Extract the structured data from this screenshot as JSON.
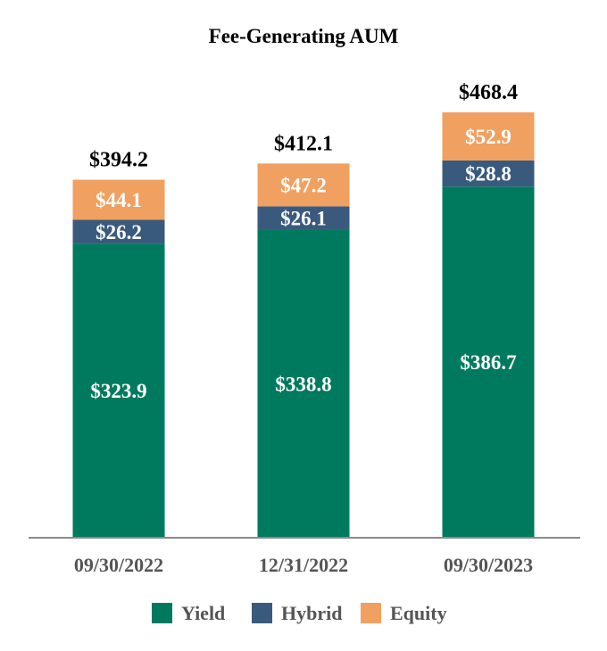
{
  "chart_data": {
    "type": "bar",
    "stacked": true,
    "title": "Fee-Generating AUM",
    "categories": [
      "09/30/2022",
      "12/31/2022",
      "09/30/2023"
    ],
    "series": [
      {
        "name": "Yield",
        "values": [
          323.9,
          338.8,
          386.7
        ],
        "labels": [
          "$323.9",
          "$338.8",
          "$386.7"
        ],
        "color": "#007a5e"
      },
      {
        "name": "Hybrid",
        "values": [
          26.2,
          26.1,
          28.8
        ],
        "labels": [
          "$26.2",
          "$26.1",
          "$28.8"
        ],
        "color": "#3a5a7d"
      },
      {
        "name": "Equity",
        "values": [
          44.1,
          47.2,
          52.9
        ],
        "labels": [
          "$44.1",
          "$47.2",
          "$52.9"
        ],
        "color": "#f0a060"
      }
    ],
    "totals": [
      394.2,
      412.1,
      468.4
    ],
    "total_labels": [
      "$394.2",
      "$412.1",
      "$468.4"
    ],
    "ylim": [
      0,
      468.4
    ],
    "grid": false,
    "legend_position": "bottom"
  }
}
